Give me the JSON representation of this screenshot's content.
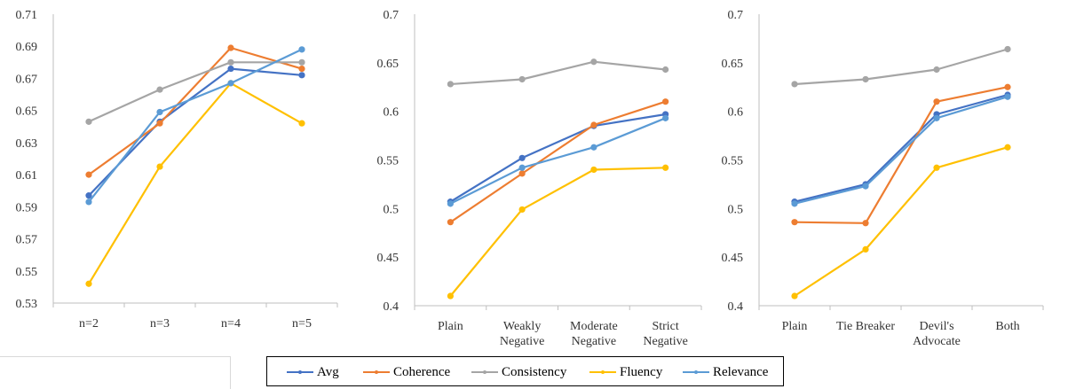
{
  "chart_data": [
    {
      "type": "line",
      "categories": [
        "n=2",
        "n=3",
        "n=4",
        "n=5"
      ],
      "ylim": [
        0.53,
        0.71
      ],
      "yticks": [
        "0.53",
        "0.55",
        "0.57",
        "0.59",
        "0.61",
        "0.63",
        "0.65",
        "0.67",
        "0.69",
        "0.71"
      ],
      "series": [
        {
          "name": "Avg",
          "values": [
            0.597,
            0.643,
            0.676,
            0.672
          ]
        },
        {
          "name": "Coherence",
          "values": [
            0.61,
            0.642,
            0.689,
            0.676
          ]
        },
        {
          "name": "Consistency",
          "values": [
            0.643,
            0.663,
            0.68,
            0.68
          ]
        },
        {
          "name": "Fluency",
          "values": [
            0.542,
            0.615,
            0.667,
            0.642
          ]
        },
        {
          "name": "Relevance",
          "values": [
            0.593,
            0.649,
            0.667,
            0.688
          ]
        }
      ]
    },
    {
      "type": "line",
      "categories": [
        "Plain",
        "Weakly Negative",
        "Moderate Negative",
        "Strict Negative"
      ],
      "ylim": [
        0.4,
        0.7
      ],
      "yticks": [
        "0.4",
        "0.45",
        "0.5",
        "0.55",
        "0.6",
        "0.65",
        "0.7"
      ],
      "series": [
        {
          "name": "Avg",
          "values": [
            0.507,
            0.552,
            0.585,
            0.597
          ]
        },
        {
          "name": "Coherence",
          "values": [
            0.486,
            0.536,
            0.586,
            0.61
          ]
        },
        {
          "name": "Consistency",
          "values": [
            0.628,
            0.633,
            0.651,
            0.643
          ]
        },
        {
          "name": "Fluency",
          "values": [
            0.41,
            0.499,
            0.54,
            0.542
          ]
        },
        {
          "name": "Relevance",
          "values": [
            0.505,
            0.542,
            0.563,
            0.593
          ]
        }
      ]
    },
    {
      "type": "line",
      "categories": [
        "Plain",
        "Tie Breaker",
        "Devil's Advocate",
        "Both"
      ],
      "ylim": [
        0.4,
        0.7
      ],
      "yticks": [
        "0.4",
        "0.45",
        "0.5",
        "0.55",
        "0.6",
        "0.65",
        "0.7"
      ],
      "series": [
        {
          "name": "Avg",
          "values": [
            0.507,
            0.525,
            0.597,
            0.617
          ]
        },
        {
          "name": "Coherence",
          "values": [
            0.486,
            0.485,
            0.61,
            0.625
          ]
        },
        {
          "name": "Consistency",
          "values": [
            0.628,
            0.633,
            0.643,
            0.664
          ]
        },
        {
          "name": "Fluency",
          "values": [
            0.41,
            0.458,
            0.542,
            0.563
          ]
        },
        {
          "name": "Relevance",
          "values": [
            0.505,
            0.523,
            0.593,
            0.615
          ]
        }
      ]
    }
  ],
  "series_colors": {
    "Avg": "#4472c4",
    "Coherence": "#ed7d31",
    "Consistency": "#a5a5a5",
    "Fluency": "#ffc000",
    "Relevance": "#5b9bd5"
  },
  "legend": {
    "items": [
      "Avg",
      "Coherence",
      "Consistency",
      "Fluency",
      "Relevance"
    ]
  }
}
